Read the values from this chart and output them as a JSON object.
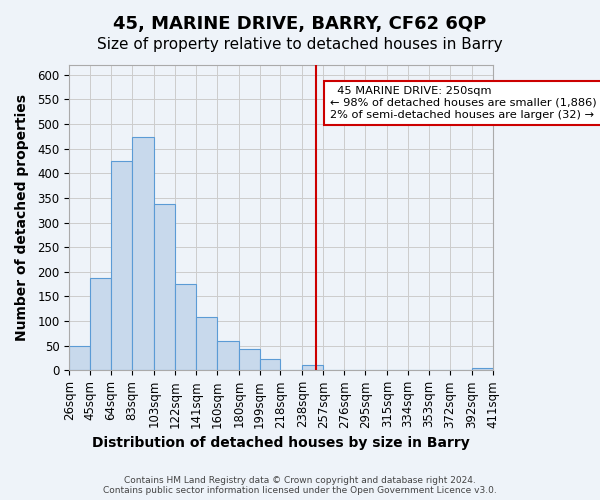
{
  "title": "45, MARINE DRIVE, BARRY, CF62 6QP",
  "subtitle": "Size of property relative to detached houses in Barry",
  "xlabel": "Distribution of detached houses by size in Barry",
  "ylabel": "Number of detached properties",
  "footer_line1": "Contains HM Land Registry data © Crown copyright and database right 2024.",
  "footer_line2": "Contains public sector information licensed under the Open Government Licence v3.0.",
  "bar_labels": [
    "26sqm",
    "45sqm",
    "64sqm",
    "83sqm",
    "103sqm",
    "122sqm",
    "141sqm",
    "160sqm",
    "180sqm",
    "199sqm",
    "218sqm",
    "238sqm",
    "257sqm",
    "276sqm",
    "295sqm",
    "315sqm",
    "334sqm",
    "353sqm",
    "372sqm",
    "392sqm",
    "411sqm"
  ],
  "bar_values": [
    50,
    188,
    425,
    474,
    337,
    175,
    108,
    60,
    43,
    24,
    0,
    10,
    0,
    0,
    0,
    0,
    0,
    0,
    0,
    5
  ],
  "bin_edges": [
    26,
    45,
    64,
    83,
    103,
    122,
    141,
    160,
    180,
    199,
    218,
    238,
    257,
    276,
    295,
    315,
    334,
    353,
    372,
    392,
    411
  ],
  "bar_color": "#c8d9ec",
  "bar_edgecolor": "#5b9bd5",
  "vline_x": 250,
  "vline_color": "#cc0000",
  "annotation_title": "45 MARINE DRIVE: 250sqm",
  "annotation_line1": "← 98% of detached houses are smaller (1,886)",
  "annotation_line2": "2% of semi-detached houses are larger (32) →",
  "annotation_box_color": "#ffffff",
  "annotation_box_edgecolor": "#cc0000",
  "ylim": [
    0,
    620
  ],
  "yticks": [
    0,
    50,
    100,
    150,
    200,
    250,
    300,
    350,
    400,
    450,
    500,
    550,
    600
  ],
  "title_fontsize": 13,
  "subtitle_fontsize": 11,
  "axis_label_fontsize": 10,
  "tick_fontsize": 8.5,
  "grid_color": "#cccccc",
  "background_color": "#eef3f9"
}
